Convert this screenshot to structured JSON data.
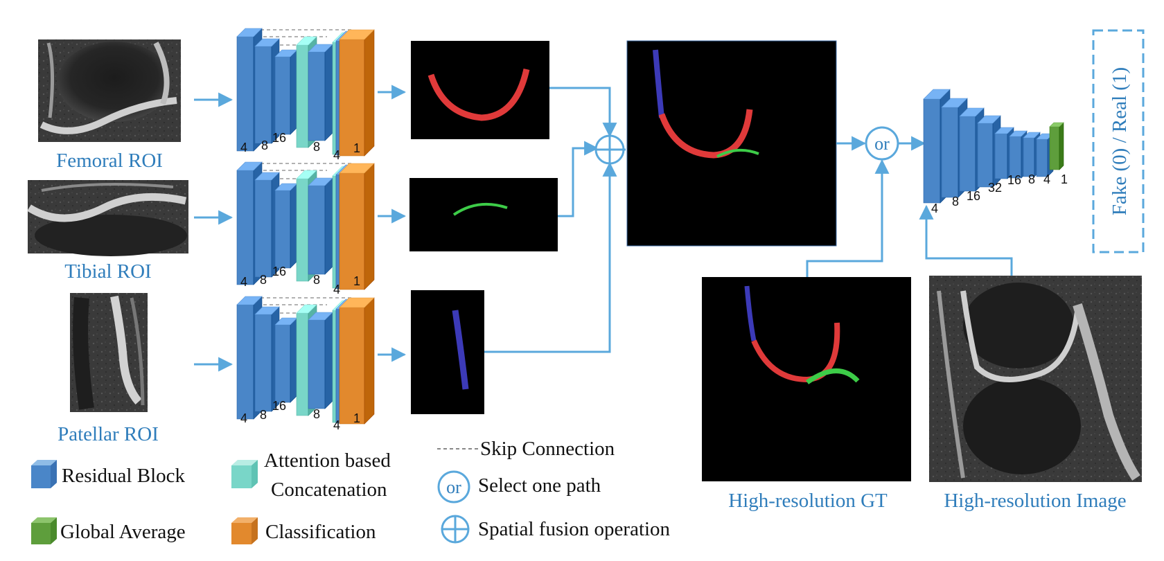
{
  "rois": [
    {
      "label": "Femoral ROI",
      "numbers": [
        "4",
        "8",
        "16",
        "8",
        "4",
        "1"
      ]
    },
    {
      "label": "Tibial ROI",
      "numbers": [
        "4",
        "8",
        "16",
        "8",
        "4",
        "1"
      ]
    },
    {
      "label": "Patellar ROI",
      "numbers": [
        "4",
        "8",
        "16",
        "8",
        "4",
        "1"
      ]
    }
  ],
  "discriminator": {
    "numbers": [
      "4",
      "8",
      "16",
      "32",
      "16",
      "8",
      "4",
      "1"
    ],
    "output_label": "Fake (0) / Real (1)"
  },
  "operators": {
    "or_symbol": "or"
  },
  "high_res": {
    "gt_label": "High-resolution GT",
    "image_label": "High-resolution Image"
  },
  "legend": {
    "residual_block": "Residual Block",
    "attention_line1": "Attention based",
    "attention_line2": "Concatenation",
    "global_average": "Global Average",
    "classification": "Classification",
    "skip_connection": "Skip Connection",
    "select_one_path": "Select one path",
    "spatial_fusion": "Spatial fusion operation"
  },
  "colors": {
    "residual": "#4a86c8",
    "attention": "#79d6c8",
    "classification": "#e2892d",
    "global_average": "#5e9e3c",
    "arrow": "#5aa8dc",
    "femoral_mask": "#e03a3a",
    "tibial_mask": "#3dcc48",
    "patellar_mask": "#3c3ab8"
  }
}
